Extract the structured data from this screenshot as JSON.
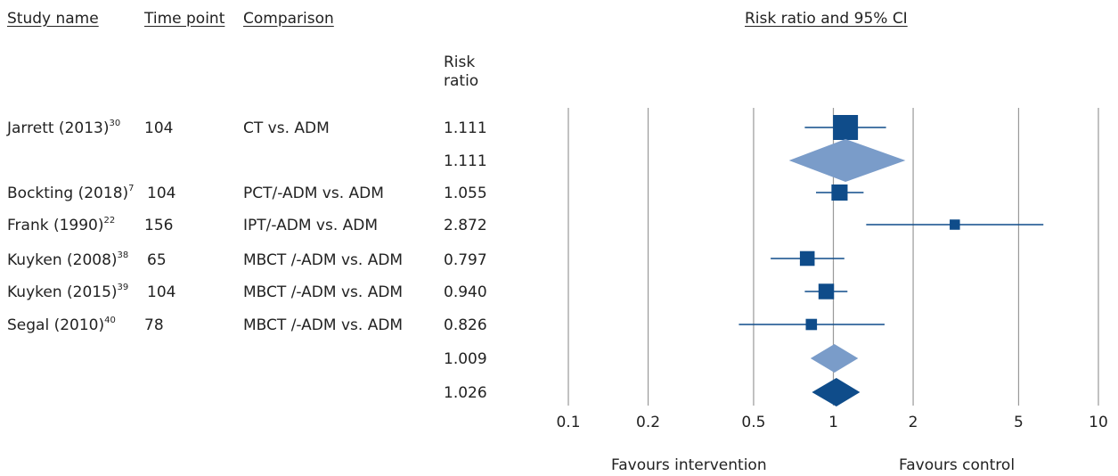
{
  "headers": {
    "study_name": "Study name",
    "time_point": "Time point",
    "comparison": "Comparison",
    "risk_ratio": "Risk ratio",
    "ci_title": "Risk ratio and 95% CI"
  },
  "rows": [
    {
      "study": "Jarrett (2013)",
      "ref": "30",
      "time": "104",
      "comparison": "CT vs. ADM",
      "rr": "1.111"
    },
    {
      "study": "",
      "ref": "",
      "time": "",
      "comparison": "",
      "rr": "1.111"
    },
    {
      "study": "Bockting (2018)",
      "ref": "7",
      "time": "104",
      "comparison": "PCT/-ADM vs. ADM",
      "rr": "1.055"
    },
    {
      "study": "Frank (1990)",
      "ref": "22",
      "time": "156",
      "comparison": "IPT/-ADM vs. ADM",
      "rr": "2.872"
    },
    {
      "study": "Kuyken (2008)",
      "ref": "38",
      "time": "65",
      "comparison": "MBCT /-ADM vs. ADM",
      "rr": "0.797"
    },
    {
      "study": "Kuyken (2015)",
      "ref": "39",
      "time": "104",
      "comparison": "MBCT /-ADM vs. ADM",
      "rr": "0.940"
    },
    {
      "study": "Segal (2010)",
      "ref": "40",
      "time": "78",
      "comparison": "MBCT /-ADM vs. ADM",
      "rr": "0.826"
    },
    {
      "study": "",
      "ref": "",
      "time": "",
      "comparison": "",
      "rr": "1.009"
    },
    {
      "study": "",
      "ref": "",
      "time": "",
      "comparison": "",
      "rr": "1.026"
    }
  ],
  "footer": {
    "favours_intervention": "Favours intervention",
    "favours_control": "Favours control"
  },
  "chart_data": {
    "type": "forest",
    "x_scale": "log",
    "xlim": [
      0.1,
      10
    ],
    "x_ticks": [
      "0.1",
      "0.2",
      "0.5",
      "1",
      "2",
      "5",
      "10"
    ],
    "colors": {
      "square": "#0f4c8a",
      "diamond_light": "#7a9cc9",
      "diamond_dark": "#0f4c8a",
      "grid": "#9a9a9a"
    },
    "entries": [
      {
        "kind": "square",
        "rr": 1.111,
        "lo": 0.78,
        "hi": 1.58,
        "weight": 1.0
      },
      {
        "kind": "diamond",
        "rr": 1.111,
        "lo": 0.68,
        "hi": 1.87,
        "style": "light"
      },
      {
        "kind": "square",
        "rr": 1.055,
        "lo": 0.86,
        "hi": 1.3,
        "weight": 0.55
      },
      {
        "kind": "square",
        "rr": 2.872,
        "lo": 1.33,
        "hi": 6.2,
        "weight": 0.25
      },
      {
        "kind": "square",
        "rr": 0.797,
        "lo": 0.58,
        "hi": 1.1,
        "weight": 0.48
      },
      {
        "kind": "square",
        "rr": 0.94,
        "lo": 0.78,
        "hi": 1.13,
        "weight": 0.52
      },
      {
        "kind": "square",
        "rr": 0.826,
        "lo": 0.44,
        "hi": 1.56,
        "weight": 0.3
      },
      {
        "kind": "diamond",
        "rr": 1.009,
        "lo": 0.82,
        "hi": 1.24,
        "style": "light"
      },
      {
        "kind": "diamond",
        "rr": 1.026,
        "lo": 0.83,
        "hi": 1.26,
        "style": "dark"
      }
    ]
  }
}
